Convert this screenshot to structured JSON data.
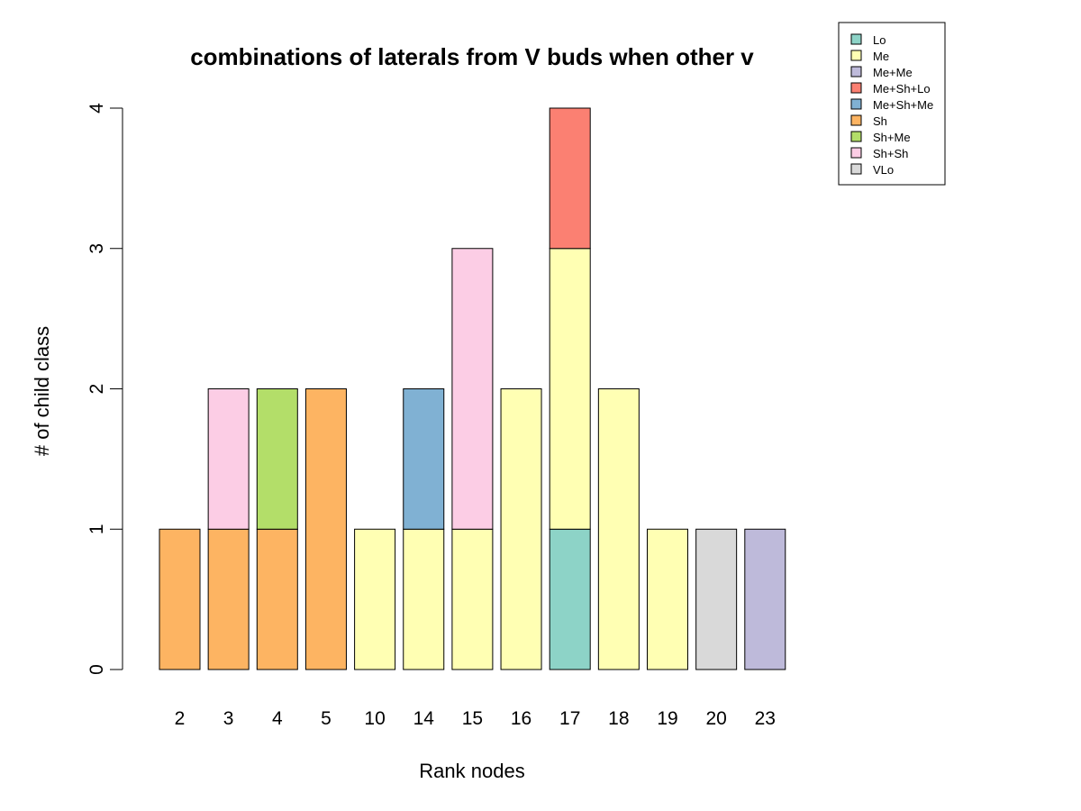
{
  "chart_data": {
    "type": "bar",
    "stacked": true,
    "title": "combinations of laterals from V buds when other v",
    "xlabel": "Rank nodes",
    "ylabel": "# of child class",
    "ylim": [
      0,
      4
    ],
    "yticks": [
      "0",
      "1",
      "2",
      "3",
      "4"
    ],
    "grid": false,
    "legend_position": "top-right",
    "categories": [
      "2",
      "3",
      "4",
      "5",
      "10",
      "14",
      "15",
      "16",
      "17",
      "18",
      "19",
      "20",
      "23"
    ],
    "series": [
      {
        "name": "Lo",
        "color": "#8DD3C7",
        "values": [
          0,
          0,
          0,
          0,
          0,
          0,
          0,
          0,
          1,
          0,
          0,
          0,
          0
        ]
      },
      {
        "name": "Me",
        "color": "#FFFFB3",
        "values": [
          0,
          0,
          0,
          0,
          1,
          1,
          1,
          2,
          2,
          2,
          1,
          0,
          0
        ]
      },
      {
        "name": "Me+Me",
        "color": "#BEBADA",
        "values": [
          0,
          0,
          0,
          0,
          0,
          0,
          0,
          0,
          0,
          0,
          0,
          0,
          1
        ]
      },
      {
        "name": "Me+Sh+Lo",
        "color": "#FB8072",
        "values": [
          0,
          0,
          0,
          0,
          0,
          0,
          0,
          0,
          1,
          0,
          0,
          0,
          0
        ]
      },
      {
        "name": "Me+Sh+Me",
        "color": "#80B1D3",
        "values": [
          0,
          0,
          0,
          0,
          0,
          1,
          0,
          0,
          0,
          0,
          0,
          0,
          0
        ]
      },
      {
        "name": "Sh",
        "color": "#FDB462",
        "values": [
          1,
          1,
          1,
          2,
          0,
          0,
          0,
          0,
          0,
          0,
          0,
          0,
          0
        ]
      },
      {
        "name": "Sh+Me",
        "color": "#B3DE69",
        "values": [
          0,
          0,
          1,
          0,
          0,
          0,
          0,
          0,
          0,
          0,
          0,
          0,
          0
        ]
      },
      {
        "name": "Sh+Sh",
        "color": "#FCCDE5",
        "values": [
          0,
          1,
          0,
          0,
          0,
          0,
          2,
          0,
          0,
          0,
          0,
          0,
          0
        ]
      },
      {
        "name": "VLo",
        "color": "#D9D9D9",
        "values": [
          0,
          0,
          0,
          0,
          0,
          0,
          0,
          0,
          0,
          0,
          0,
          1,
          0
        ]
      }
    ]
  }
}
